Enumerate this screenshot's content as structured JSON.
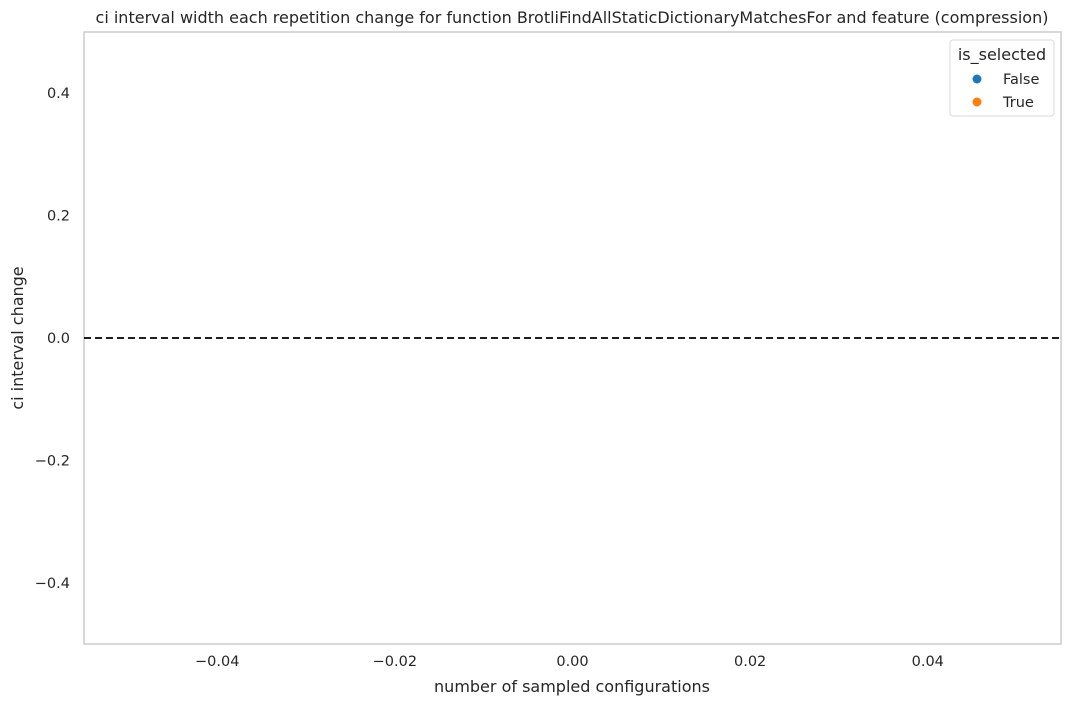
{
  "chart_data": {
    "type": "scatter",
    "title": "ci interval width each repetition change for function BrotliFindAllStaticDictionaryMatchesFor and feature (compression)",
    "xlabel": "number of sampled configurations",
    "ylabel": "ci interval change",
    "xlim": [
      -0.055,
      0.055
    ],
    "ylim": [
      -0.5,
      0.5
    ],
    "xticks": [
      -0.04,
      -0.02,
      0.0,
      0.02,
      0.04
    ],
    "xtick_labels": [
      "−0.04",
      "−0.02",
      "0.00",
      "0.02",
      "0.04"
    ],
    "yticks": [
      0.4,
      0.2,
      0.0,
      -0.2,
      -0.4
    ],
    "ytick_labels": [
      "0.4",
      "0.2",
      "0.0",
      "−0.2",
      "−0.4"
    ],
    "grid": false,
    "reference_line": {
      "y": 0.0,
      "style": "dashed",
      "color": "#000000"
    },
    "legend": {
      "title": "is_selected",
      "placement": "top-right",
      "entries": [
        {
          "label": "False",
          "color": "#1f77b4"
        },
        {
          "label": "True",
          "color": "#ff7f0e"
        }
      ]
    },
    "series": [
      {
        "name": "False",
        "color": "#1f77b4",
        "points": []
      },
      {
        "name": "True",
        "color": "#ff7f0e",
        "points": []
      }
    ]
  }
}
